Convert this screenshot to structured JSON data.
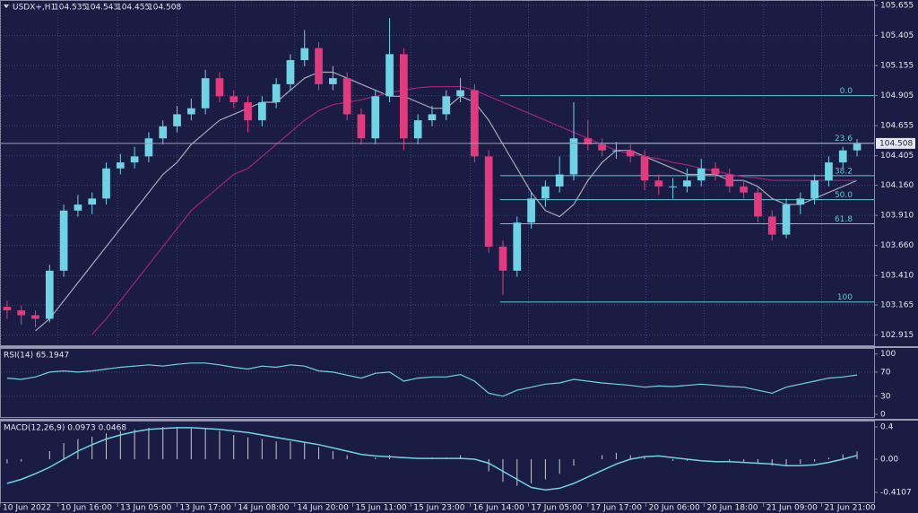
{
  "chart_data": {
    "type": "candlestick",
    "title": "USDX+,H1",
    "header_ohlc": [
      104.535,
      104.543,
      104.455,
      104.508
    ],
    "last_price": 104.508,
    "bull_color": "#6fd3e3",
    "bear_color": "#e23a7c",
    "grid": true,
    "xlim": [
      -0.5,
      61.2
    ],
    "ylim": [
      102.83,
      105.7
    ],
    "yticks": [
      105.655,
      105.405,
      105.155,
      104.905,
      104.655,
      104.405,
      {
        "value": 104.16,
        "label": "104.160"
      },
      {
        "value": 103.91,
        "label": "103.910"
      },
      {
        "value": 103.66,
        "label": "103.660"
      },
      {
        "value": 103.41,
        "label": "103.410"
      },
      103.165,
      102.915
    ],
    "xticks": [
      {
        "value": -0.5,
        "label": "10 Jun 2022"
      },
      {
        "value": 3.6,
        "label": "10 Jun 16:00"
      },
      {
        "value": 7.8,
        "label": "13 Jun 05:00"
      },
      {
        "value": 12,
        "label": "13 Jun 17:00"
      },
      {
        "value": 16.1,
        "label": "14 Jun 08:00"
      },
      {
        "value": 20.3,
        "label": "14 Jun 20:00"
      },
      {
        "value": 24.4,
        "label": "15 Jun 11:00"
      },
      {
        "value": 28.5,
        "label": "15 Jun 23:00"
      },
      {
        "value": 32.7,
        "label": "16 Jun 14:00"
      },
      {
        "value": 36.8,
        "label": "17 Jun 05:00"
      },
      {
        "value": 41,
        "label": "17 Jun 17:00"
      },
      {
        "value": 45.1,
        "label": "20 Jun 06:00"
      },
      {
        "value": 49.2,
        "label": "20 Jun 18:00"
      },
      {
        "value": 53.4,
        "label": "21 Jun 09:00"
      },
      {
        "value": 57.5,
        "label": "21 Jun 21:00"
      }
    ],
    "candles": [
      [
        103.15,
        103.2,
        103.05,
        103.12
      ],
      [
        103.12,
        103.16,
        103.0,
        103.08
      ],
      [
        103.08,
        103.12,
        102.98,
        103.05
      ],
      [
        103.05,
        103.5,
        103.02,
        103.45
      ],
      [
        103.45,
        104.0,
        103.4,
        103.95
      ],
      [
        103.95,
        104.08,
        103.9,
        104.0
      ],
      [
        104.0,
        104.1,
        103.92,
        104.05
      ],
      [
        104.05,
        104.35,
        104.0,
        104.3
      ],
      [
        104.3,
        104.42,
        104.25,
        104.35
      ],
      [
        104.35,
        104.48,
        104.3,
        104.4
      ],
      [
        104.4,
        104.6,
        104.35,
        104.55
      ],
      [
        104.55,
        104.7,
        104.5,
        104.65
      ],
      [
        104.65,
        104.82,
        104.6,
        104.75
      ],
      [
        104.75,
        104.88,
        104.7,
        104.8
      ],
      [
        104.8,
        105.12,
        104.75,
        105.05
      ],
      [
        105.05,
        105.1,
        104.85,
        104.9
      ],
      [
        104.9,
        104.95,
        104.8,
        104.85
      ],
      [
        104.85,
        104.9,
        104.6,
        104.7
      ],
      [
        104.7,
        104.9,
        104.65,
        104.85
      ],
      [
        104.85,
        105.05,
        104.8,
        105.0
      ],
      [
        105.0,
        105.25,
        104.95,
        105.2
      ],
      [
        105.2,
        105.45,
        105.15,
        105.3
      ],
      [
        105.3,
        105.35,
        104.95,
        105.0
      ],
      [
        105.0,
        105.15,
        104.95,
        105.05
      ],
      [
        105.05,
        105.1,
        104.7,
        104.75
      ],
      [
        104.75,
        104.8,
        104.5,
        104.55
      ],
      [
        104.55,
        104.95,
        104.5,
        104.9
      ],
      [
        104.9,
        105.55,
        104.85,
        105.25
      ],
      [
        105.25,
        105.3,
        104.45,
        104.55
      ],
      [
        104.55,
        104.75,
        104.5,
        104.7
      ],
      [
        104.7,
        104.82,
        104.65,
        104.75
      ],
      [
        104.75,
        104.95,
        104.7,
        104.9
      ],
      [
        104.9,
        105.05,
        104.85,
        104.95
      ],
      [
        104.95,
        105.0,
        104.35,
        104.4
      ],
      [
        104.4,
        104.45,
        103.6,
        103.65
      ],
      [
        103.65,
        103.7,
        103.25,
        103.45
      ],
      [
        103.45,
        103.9,
        103.4,
        103.85
      ],
      [
        103.85,
        104.1,
        103.8,
        104.05
      ],
      [
        104.05,
        104.2,
        103.98,
        104.15
      ],
      [
        104.15,
        104.4,
        104.1,
        104.25
      ],
      [
        104.25,
        104.85,
        104.2,
        104.55
      ],
      [
        104.55,
        104.7,
        104.45,
        104.5
      ],
      [
        104.5,
        104.55,
        104.4,
        104.45
      ],
      [
        104.45,
        104.52,
        104.38,
        104.45
      ],
      [
        104.45,
        104.5,
        104.35,
        104.4
      ],
      [
        104.4,
        104.45,
        104.12,
        104.2
      ],
      [
        104.2,
        104.25,
        104.08,
        104.15
      ],
      [
        104.15,
        104.22,
        104.05,
        104.15
      ],
      [
        104.15,
        104.3,
        104.1,
        104.2
      ],
      [
        104.2,
        104.38,
        104.15,
        104.3
      ],
      [
        104.3,
        104.35,
        104.2,
        104.25
      ],
      [
        104.25,
        104.3,
        104.1,
        104.15
      ],
      [
        104.15,
        104.2,
        104.05,
        104.1
      ],
      [
        104.1,
        104.15,
        103.85,
        103.9
      ],
      [
        103.9,
        103.95,
        103.7,
        103.75
      ],
      [
        103.75,
        104.05,
        103.72,
        104.0
      ],
      [
        104.0,
        104.1,
        103.92,
        104.05
      ],
      [
        104.05,
        104.25,
        104.0,
        104.2
      ],
      [
        104.2,
        104.4,
        104.15,
        104.35
      ],
      [
        104.35,
        104.48,
        104.3,
        104.45
      ],
      [
        104.45,
        104.543,
        104.4,
        104.508
      ]
    ],
    "series": [
      {
        "color": "#a9a9b8",
        "values": [
          null,
          null,
          102.95,
          103.05,
          103.2,
          103.35,
          103.5,
          103.65,
          103.8,
          103.95,
          104.1,
          104.25,
          104.35,
          104.5,
          104.6,
          104.7,
          104.75,
          104.8,
          104.85,
          104.85,
          104.95,
          105.05,
          105.1,
          105.1,
          105.05,
          105.0,
          104.95,
          104.9,
          104.9,
          104.85,
          104.8,
          104.8,
          104.9,
          104.85,
          104.7,
          104.5,
          104.3,
          104.1,
          103.95,
          103.9,
          104.0,
          104.2,
          104.35,
          104.45,
          104.45,
          104.4,
          104.35,
          104.3,
          104.25,
          104.25,
          104.25,
          104.2,
          104.2,
          104.15,
          104.05,
          104.0,
          104.0,
          104.05,
          104.1,
          104.15,
          104.2
        ]
      },
      {
        "color": "#a0237e",
        "values": [
          null,
          null,
          null,
          null,
          null,
          null,
          102.92,
          103.05,
          103.2,
          103.35,
          103.5,
          103.65,
          103.8,
          103.95,
          104.05,
          104.15,
          104.25,
          104.3,
          104.4,
          104.5,
          104.6,
          104.7,
          104.78,
          104.83,
          104.85,
          104.87,
          104.9,
          104.93,
          104.95,
          104.97,
          104.98,
          104.98,
          104.98,
          104.95,
          104.9,
          104.85,
          104.8,
          104.75,
          104.7,
          104.65,
          104.6,
          104.55,
          104.5,
          104.45,
          104.42,
          104.4,
          104.38,
          104.35,
          104.33,
          104.3,
          104.28,
          104.25,
          104.23,
          104.22,
          104.2,
          104.2,
          104.2,
          104.2,
          104.2,
          104.2,
          104.2
        ]
      }
    ],
    "fibonacci": {
      "start": 34.8,
      "color": "#5fc9d6",
      "levels": [
        {
          "label": "0.0",
          "price": 104.905
        },
        {
          "label": "23.6",
          "price": 104.51
        },
        {
          "label": "38.2",
          "price": 104.24
        },
        {
          "label": "50.0",
          "price": 104.04
        },
        {
          "label": "61.8",
          "price": 103.84
        },
        {
          "label": "100",
          "price": 103.19
        }
      ]
    },
    "rsi": {
      "label": "RSI(14) 65.1947",
      "color": "#6fd3e3",
      "ylim": [
        -4.5,
        110
      ],
      "yticks": [
        100,
        70,
        30,
        0
      ],
      "values": [
        60,
        58,
        62,
        70,
        72,
        70,
        72,
        75,
        78,
        80,
        82,
        80,
        83,
        85,
        85,
        82,
        78,
        75,
        80,
        78,
        82,
        80,
        72,
        70,
        65,
        60,
        68,
        70,
        55,
        60,
        62,
        62,
        66,
        55,
        35,
        30,
        40,
        45,
        50,
        52,
        58,
        55,
        52,
        50,
        48,
        45,
        47,
        46,
        48,
        50,
        48,
        46,
        45,
        40,
        35,
        45,
        50,
        55,
        60,
        62,
        65.1947
      ]
    },
    "macd": {
      "label": "MACD(12,26,9) 0.0973 0.0468",
      "color": "#6fd3e3",
      "hist_color": "#c9c9d6",
      "ylim": [
        -0.533,
        0.467
      ],
      "yticks": [
        0.4,
        {
          "value": 0,
          "label": "0.00"
        },
        -0.4107
      ],
      "histogram": [
        -0.05,
        -0.03,
        0.0,
        0.1,
        0.2,
        0.25,
        0.28,
        0.32,
        0.35,
        0.37,
        0.39,
        0.4,
        0.4,
        0.38,
        0.38,
        0.35,
        0.3,
        0.27,
        0.25,
        0.22,
        0.22,
        0.2,
        0.15,
        0.1,
        0.05,
        0.0,
        0.02,
        0.05,
        0.0,
        0.0,
        0.02,
        0.02,
        0.05,
        0.0,
        -0.15,
        -0.28,
        -0.33,
        -0.3,
        -0.25,
        -0.18,
        -0.08,
        0.0,
        0.05,
        0.08,
        0.05,
        0.02,
        0.0,
        -0.02,
        -0.02,
        0.0,
        0.0,
        -0.02,
        -0.03,
        -0.05,
        -0.08,
        -0.08,
        -0.06,
        -0.03,
        0.02,
        0.06,
        0.0973
      ],
      "signal": [
        -0.3,
        -0.25,
        -0.18,
        -0.1,
        0.0,
        0.1,
        0.18,
        0.25,
        0.3,
        0.34,
        0.37,
        0.38,
        0.39,
        0.39,
        0.38,
        0.37,
        0.35,
        0.33,
        0.3,
        0.27,
        0.24,
        0.21,
        0.18,
        0.14,
        0.1,
        0.06,
        0.04,
        0.03,
        0.02,
        0.01,
        0.01,
        0.01,
        0.01,
        0.0,
        -0.05,
        -0.15,
        -0.25,
        -0.35,
        -0.38,
        -0.36,
        -0.3,
        -0.22,
        -0.14,
        -0.06,
        0.0,
        0.03,
        0.04,
        0.02,
        0.0,
        -0.02,
        -0.03,
        -0.03,
        -0.04,
        -0.05,
        -0.06,
        -0.08,
        -0.08,
        -0.07,
        -0.04,
        0.0,
        0.0468
      ]
    }
  }
}
